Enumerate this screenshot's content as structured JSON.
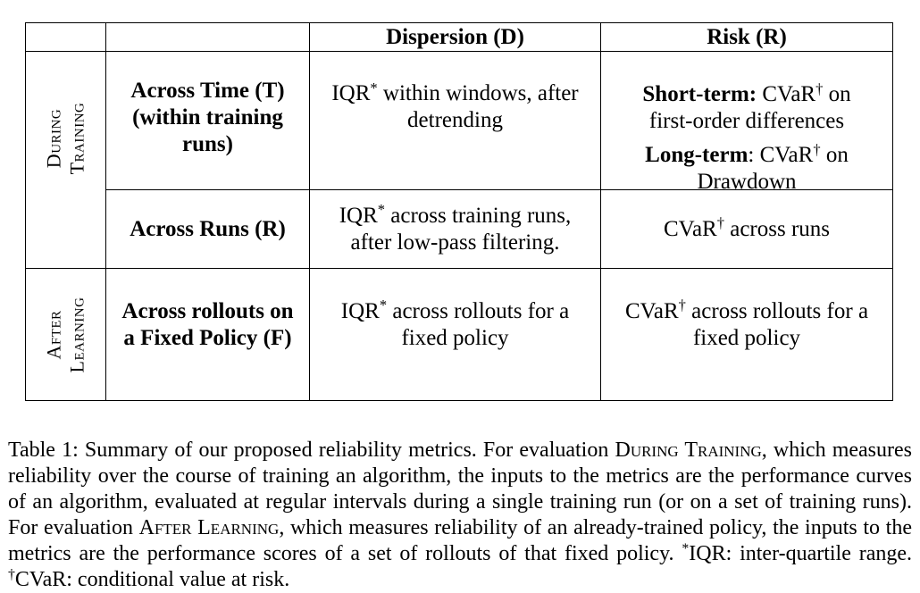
{
  "page": {
    "background_color": "#ffffff",
    "text_color": "#000000",
    "border_color": "#000000"
  },
  "table": {
    "column_headers": [
      {
        "label": "Dispersion (D)"
      },
      {
        "label": "Risk (R)"
      }
    ],
    "row_groups": [
      {
        "lines": [
          "During",
          "Training"
        ]
      },
      {
        "lines": [
          "After",
          "Learning"
        ]
      }
    ],
    "rows": [
      {
        "name": [
          {
            "t": "Across Time (T) (within training runs)",
            "b": true
          }
        ],
        "dispersion": [
          {
            "t": "IQR"
          },
          {
            "t": "*",
            "sup": true
          },
          {
            "t": " within windows, after detrending"
          }
        ],
        "risk": [
          [
            {
              "t": "Short-term:",
              "b": true
            },
            {
              "t": " CVaR"
            },
            {
              "t": "†",
              "sup": true
            },
            {
              "t": " on first-order differences"
            }
          ],
          [
            {
              "t": "Long-term",
              "b": true
            },
            {
              "t": ": CVaR"
            },
            {
              "t": "†",
              "sup": true
            },
            {
              "t": " on Drawdown"
            }
          ]
        ]
      },
      {
        "name": [
          {
            "t": "Across Runs (R)",
            "b": true
          }
        ],
        "dispersion": [
          {
            "t": "IQR"
          },
          {
            "t": "*",
            "sup": true
          },
          {
            "t": " across training runs, after low-pass filtering."
          }
        ],
        "risk": [
          [
            {
              "t": "CVaR"
            },
            {
              "t": "†",
              "sup": true
            },
            {
              "t": " across runs"
            }
          ]
        ]
      },
      {
        "name": [
          {
            "t": "Across rollouts on a Fixed Policy (F)",
            "b": true
          }
        ],
        "dispersion": [
          {
            "t": "IQR"
          },
          {
            "t": "*",
            "sup": true
          },
          {
            "t": " across rollouts for a fixed policy"
          }
        ],
        "risk": [
          [
            {
              "t": "CVaR"
            },
            {
              "t": "†",
              "sup": true
            },
            {
              "t": " across rollouts for a fixed policy"
            }
          ]
        ]
      }
    ]
  },
  "caption": {
    "segments": [
      {
        "t": "Table 1: Summary of our proposed reliability metrics. For evaluation "
      },
      {
        "t": "During Training",
        "sc": true
      },
      {
        "t": ", which measures reliability over the course of training an algorithm, the inputs to the metrics are the performance curves of an algorithm, evaluated at regular intervals during a single training run (or on a set of training runs). For evaluation "
      },
      {
        "t": "After Learning",
        "sc": true
      },
      {
        "t": ", which measures reliability of an already-trained policy, the inputs to the metrics are the performance scores of a set of rollouts of that fixed policy. "
      },
      {
        "t": "*",
        "sup": true
      },
      {
        "t": "IQR: inter-quartile range. "
      },
      {
        "t": "†",
        "sup": true
      },
      {
        "t": "CVaR: conditional value at risk."
      }
    ]
  }
}
